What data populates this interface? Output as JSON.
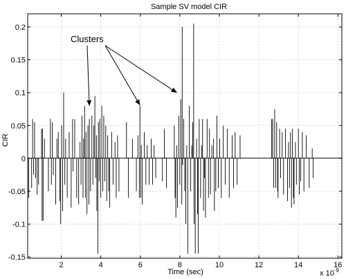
{
  "chart_data": {
    "type": "stem",
    "title": "Sample SV model CIR",
    "xlabel": "Time (sec)",
    "ylabel": "CIR",
    "x_multiplier_label": "x 10",
    "x_multiplier_exponent": "-9",
    "xlim": [
      0.3,
      16.2
    ],
    "ylim": [
      -0.152,
      0.22
    ],
    "xticks": [
      2,
      4,
      6,
      8,
      10,
      12,
      14,
      16
    ],
    "yticks": [
      -0.15,
      -0.1,
      -0.05,
      0,
      0.05,
      0.1,
      0.15,
      0.2
    ],
    "xtick_labels": [
      "2",
      "4",
      "6",
      "8",
      "10",
      "12",
      "14",
      "16"
    ],
    "ytick_labels": [
      "-0.15",
      "-0.1",
      "-0.05",
      "0",
      "0.05",
      "0.1",
      "0.15",
      "0.2"
    ],
    "grid": true,
    "grid_style": "dotted",
    "annotation": {
      "text": "Clusters",
      "text_anchor_data": [
        4.0,
        0.177
      ],
      "arrows_to_data": [
        [
          3.42,
          0.08
        ],
        [
          5.98,
          0.081
        ],
        [
          7.85,
          0.1
        ]
      ]
    },
    "series": [
      {
        "stems": [
          [
            0.35,
            -0.06
          ],
          [
            0.5,
            -0.045
          ],
          [
            0.55,
            0.06
          ],
          [
            0.6,
            -0.025
          ],
          [
            0.65,
            0.055
          ],
          [
            0.7,
            -0.03
          ],
          [
            0.78,
            -0.055
          ],
          [
            0.85,
            -0.04
          ],
          [
            1.0,
            0.045
          ],
          [
            1.03,
            -0.095
          ],
          [
            1.05,
            0.045
          ],
          [
            1.08,
            -0.095
          ],
          [
            1.15,
            0.03
          ],
          [
            1.35,
            -0.05
          ],
          [
            1.45,
            0.06
          ],
          [
            1.5,
            -0.04
          ],
          [
            1.55,
            0.055
          ],
          [
            1.6,
            -0.025
          ],
          [
            1.72,
            -0.07
          ],
          [
            1.78,
            0.03
          ],
          [
            1.85,
            0.04
          ],
          [
            1.92,
            -0.065
          ],
          [
            1.97,
            -0.1
          ],
          [
            2.02,
            0.05
          ],
          [
            2.07,
            -0.08
          ],
          [
            2.12,
            0.1
          ],
          [
            2.18,
            -0.04
          ],
          [
            2.22,
            0.03
          ],
          [
            2.3,
            -0.06
          ],
          [
            2.4,
            0.04
          ],
          [
            2.5,
            -0.075
          ],
          [
            2.57,
            0.06
          ],
          [
            2.6,
            -0.02
          ],
          [
            2.68,
            0.06
          ],
          [
            2.78,
            -0.06
          ],
          [
            2.88,
            -0.07
          ],
          [
            2.95,
            0.025
          ],
          [
            3.0,
            -0.04
          ],
          [
            3.05,
            0.065
          ],
          [
            3.1,
            -0.06
          ],
          [
            3.13,
            0.03
          ],
          [
            3.18,
            0.08
          ],
          [
            3.22,
            -0.06
          ],
          [
            3.25,
            0.04
          ],
          [
            3.3,
            -0.085
          ],
          [
            3.35,
            0.05
          ],
          [
            3.4,
            -0.07
          ],
          [
            3.42,
            0.06
          ],
          [
            3.48,
            -0.05
          ],
          [
            3.55,
            0.065
          ],
          [
            3.6,
            -0.04
          ],
          [
            3.65,
            0.05
          ],
          [
            3.7,
            0.095
          ],
          [
            3.74,
            -0.03
          ],
          [
            3.78,
            0.035
          ],
          [
            3.8,
            -0.08
          ],
          [
            3.85,
            -0.145
          ],
          [
            3.88,
            0.055
          ],
          [
            3.92,
            -0.035
          ],
          [
            3.95,
            0.06
          ],
          [
            4.0,
            -0.06
          ],
          [
            4.05,
            0.08
          ],
          [
            4.1,
            -0.05
          ],
          [
            4.15,
            0.065
          ],
          [
            4.2,
            -0.035
          ],
          [
            4.25,
            0.05
          ],
          [
            4.3,
            -0.065
          ],
          [
            4.35,
            0.035
          ],
          [
            4.4,
            -0.05
          ],
          [
            4.45,
            -0.075
          ],
          [
            4.55,
            0.04
          ],
          [
            4.62,
            -0.04
          ],
          [
            4.72,
            0.025
          ],
          [
            4.78,
            -0.06
          ],
          [
            4.85,
            0.035
          ],
          [
            4.92,
            -0.05
          ],
          [
            5.3,
            0.055
          ],
          [
            5.4,
            -0.06
          ],
          [
            5.6,
            0.03
          ],
          [
            5.8,
            -0.05
          ],
          [
            5.88,
            0.035
          ],
          [
            5.95,
            -0.06
          ],
          [
            5.98,
            0.08
          ],
          [
            6.02,
            -0.06
          ],
          [
            6.05,
            0.02
          ],
          [
            6.1,
            -0.07
          ],
          [
            6.2,
            0.04
          ],
          [
            6.28,
            -0.04
          ],
          [
            6.35,
            0.02
          ],
          [
            6.45,
            -0.04
          ],
          [
            6.55,
            0.03
          ],
          [
            6.62,
            -0.04
          ],
          [
            6.7,
            0.02
          ],
          [
            6.78,
            -0.03
          ],
          [
            7.12,
            -0.035
          ],
          [
            7.22,
            0.045
          ],
          [
            7.32,
            -0.045
          ],
          [
            7.72,
            0.05
          ],
          [
            7.76,
            -0.06
          ],
          [
            7.8,
            -0.09
          ],
          [
            7.85,
            0.02
          ],
          [
            7.88,
            -0.075
          ],
          [
            7.95,
            0.065
          ],
          [
            8.0,
            -0.04
          ],
          [
            8.05,
            0.09
          ],
          [
            8.1,
            -0.07
          ],
          [
            8.12,
            0.2
          ],
          [
            8.14,
            -0.01
          ],
          [
            8.2,
            0.06
          ],
          [
            8.25,
            -0.05
          ],
          [
            8.3,
            -0.1
          ],
          [
            8.35,
            0.02
          ],
          [
            8.4,
            -0.145
          ],
          [
            8.48,
            0.08
          ],
          [
            8.55,
            -0.05
          ],
          [
            8.6,
            0.02
          ],
          [
            8.65,
            0.055
          ],
          [
            8.7,
            0.205
          ],
          [
            8.72,
            -0.1
          ],
          [
            8.78,
            -0.145
          ],
          [
            8.85,
            0.03
          ],
          [
            8.9,
            -0.085
          ],
          [
            8.93,
            -0.145
          ],
          [
            8.98,
            0.06
          ],
          [
            9.05,
            -0.06
          ],
          [
            9.1,
            0.02
          ],
          [
            9.15,
            0.06
          ],
          [
            9.2,
            -0.08
          ],
          [
            9.25,
            -0.03
          ],
          [
            9.3,
            -0.09
          ],
          [
            9.38,
            0.06
          ],
          [
            9.45,
            -0.06
          ],
          [
            9.5,
            0.045
          ],
          [
            9.55,
            -0.055
          ],
          [
            9.62,
            0.02
          ],
          [
            9.7,
            0.03
          ],
          [
            9.75,
            -0.08
          ],
          [
            9.82,
            -0.05
          ],
          [
            9.88,
            0.065
          ],
          [
            9.95,
            -0.045
          ],
          [
            10.02,
            0.03
          ],
          [
            10.1,
            -0.06
          ],
          [
            10.2,
            0.05
          ],
          [
            10.3,
            -0.04
          ],
          [
            10.4,
            0.045
          ],
          [
            10.5,
            -0.06
          ],
          [
            10.65,
            0.035
          ],
          [
            10.72,
            -0.045
          ],
          [
            10.8,
            0.04
          ],
          [
            10.9,
            -0.04
          ],
          [
            11.05,
            0.035
          ],
          [
            12.65,
            0.06
          ],
          [
            12.7,
            0.06
          ],
          [
            12.75,
            -0.045
          ],
          [
            12.8,
            0.075
          ],
          [
            12.85,
            -0.045
          ],
          [
            12.9,
            0.055
          ],
          [
            12.95,
            -0.05
          ],
          [
            12.97,
            -0.06
          ],
          [
            13.05,
            0.045
          ],
          [
            13.1,
            -0.03
          ],
          [
            13.18,
            0.04
          ],
          [
            13.25,
            -0.055
          ],
          [
            13.35,
            0.045
          ],
          [
            13.45,
            -0.065
          ],
          [
            13.5,
            0.025
          ],
          [
            13.55,
            -0.045
          ],
          [
            13.6,
            0.04
          ],
          [
            13.65,
            -0.075
          ],
          [
            13.7,
            0.045
          ],
          [
            13.75,
            -0.06
          ],
          [
            13.78,
            -0.07
          ],
          [
            13.85,
            0.025
          ],
          [
            13.9,
            -0.04
          ],
          [
            14.0,
            0.045
          ],
          [
            14.05,
            -0.055
          ],
          [
            14.12,
            -0.035
          ],
          [
            14.2,
            0.04
          ],
          [
            14.28,
            -0.05
          ],
          [
            14.4,
            0.035
          ],
          [
            14.55,
            -0.045
          ],
          [
            14.7,
            0.015
          ],
          [
            14.75,
            -0.03
          ]
        ]
      }
    ]
  }
}
